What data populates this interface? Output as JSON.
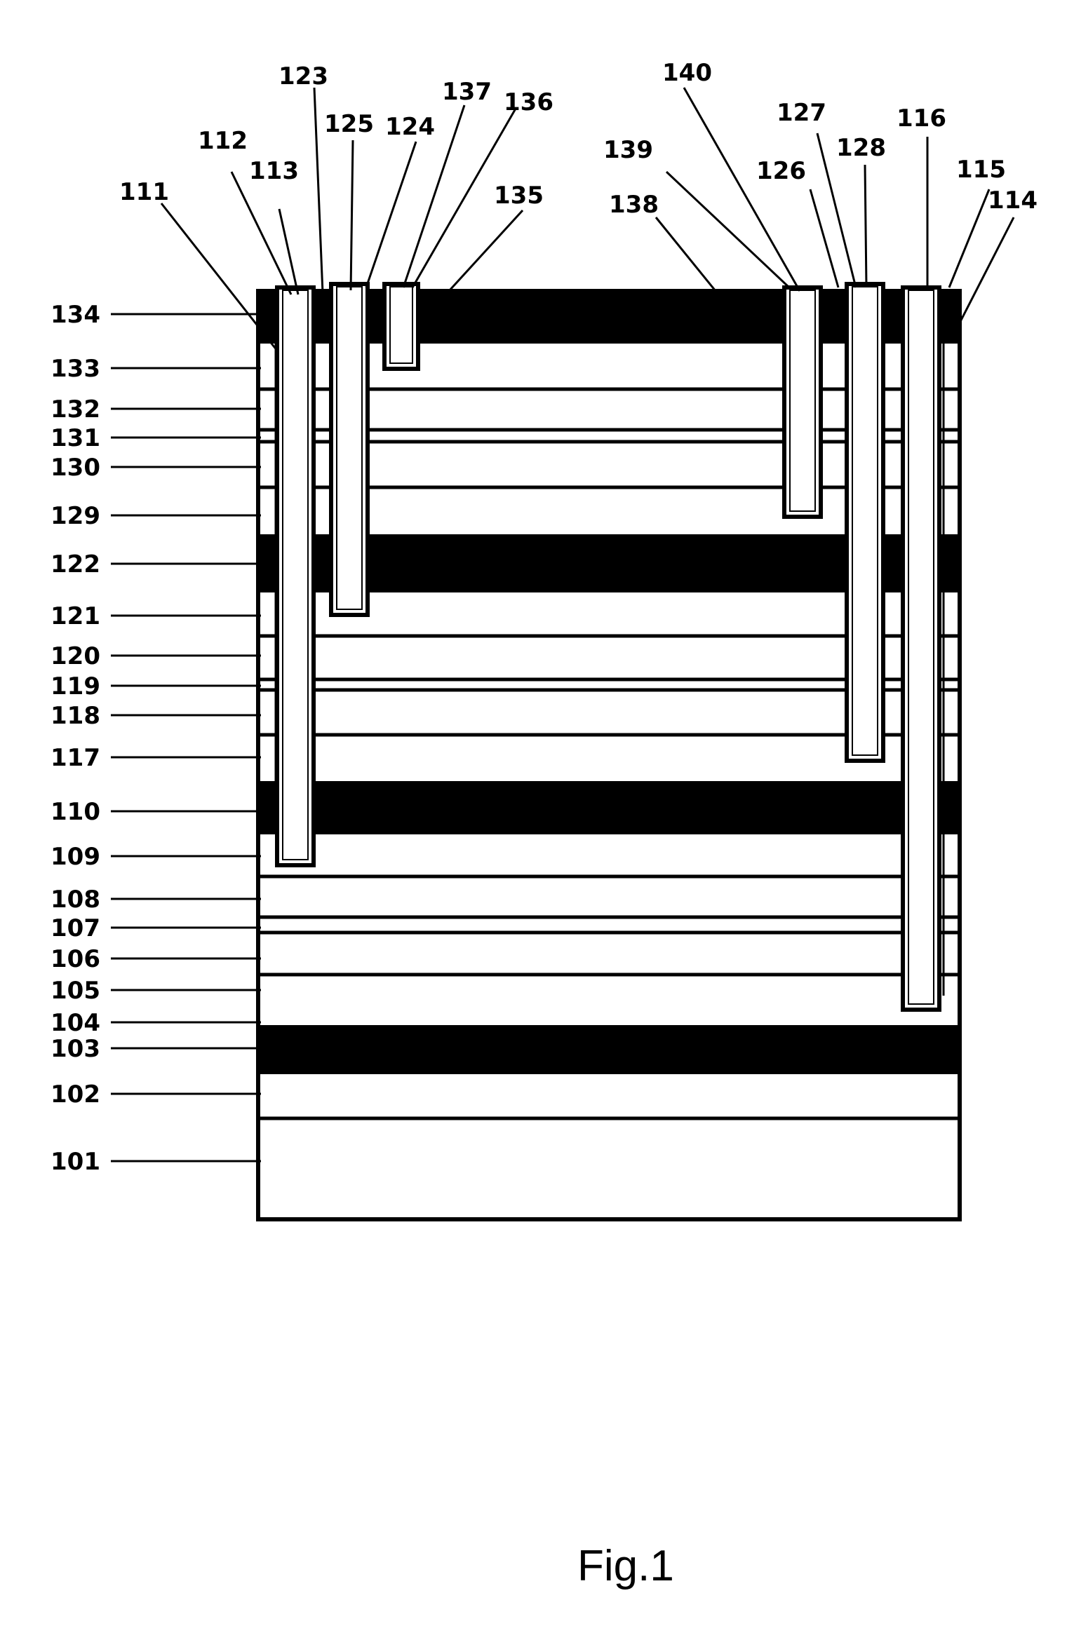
{
  "figure": {
    "caption": "Fig.1",
    "left_labels": [
      "134",
      "133",
      "132",
      "131",
      "130",
      "129",
      "122",
      "121",
      "120",
      "119",
      "118",
      "117",
      "110",
      "109",
      "108",
      "107",
      "106",
      "105",
      "104",
      "103",
      "102",
      "101"
    ],
    "top_labels": [
      "111",
      "112",
      "113",
      "123",
      "125",
      "124",
      "137",
      "136",
      "135",
      "140",
      "139",
      "138",
      "126",
      "127",
      "128",
      "116",
      "115",
      "114"
    ]
  }
}
